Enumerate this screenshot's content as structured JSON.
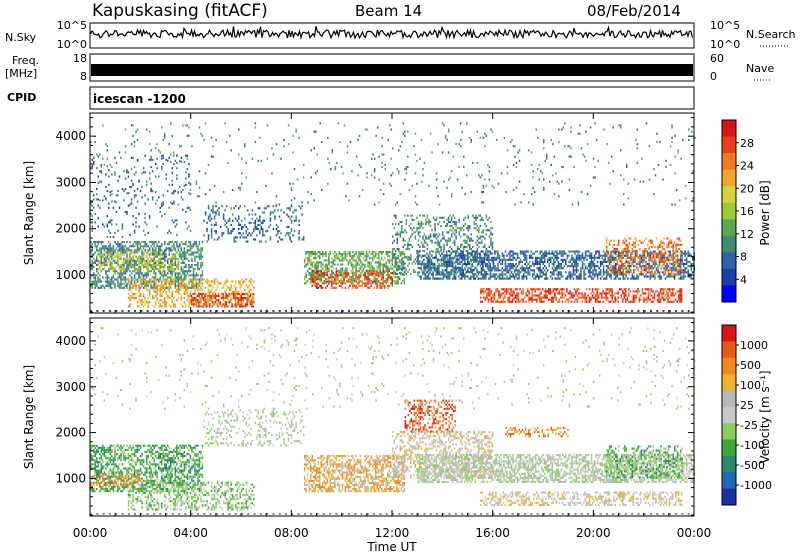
{
  "header": {
    "station": "Kapuskasing (fitACF)",
    "beam": "Beam 14",
    "date": "08/Feb/2014"
  },
  "side_labels": {
    "nsky": "N.Sky",
    "freq": "Freq.",
    "freq_unit": "[MHz]",
    "cpid": "CPID",
    "nsearch": "N.Search",
    "nave": "Nave",
    "cpid_value": "icescan -1200"
  },
  "strips": {
    "noise": {
      "left_ticks": [
        "10^5",
        "10^0"
      ],
      "right_ticks": [
        "10^5",
        "10^0"
      ]
    },
    "freq": {
      "left_ticks": [
        "18",
        "8"
      ],
      "right_ticks": [
        "60",
        "0"
      ]
    }
  },
  "chart_data": [
    {
      "type": "heatmap",
      "title": "",
      "xlabel": "Time UT",
      "ylabel": "Slant Range [km]",
      "x_ticks": [
        "00:00",
        "04:00",
        "08:00",
        "12:00",
        "16:00",
        "20:00",
        "00:00"
      ],
      "xlim_hours": [
        0,
        24
      ],
      "ylim": [
        180,
        4500
      ],
      "y_ticks": [
        1000,
        2000,
        3000,
        4000
      ],
      "colorbar": {
        "label": "Power [dB]",
        "ticks": [
          "4",
          "8",
          "12",
          "16",
          "20",
          "24",
          "28"
        ],
        "colors": [
          "#0000ff",
          "#1b3fa8",
          "#2f62a6",
          "#3d8c6e",
          "#5aa84a",
          "#9acb35",
          "#d6d23a",
          "#f2a72a",
          "#f07a1e",
          "#e8401a",
          "#d81414"
        ]
      },
      "scatter_regions": [
        {
          "t0": 0.0,
          "t1": 4.5,
          "r0": 700,
          "r1": 1700,
          "c": 3,
          "d": 0.55
        },
        {
          "t0": 0.3,
          "t1": 3.5,
          "r0": 1100,
          "r1": 1500,
          "c": 6,
          "d": 0.35
        },
        {
          "t0": 1.5,
          "t1": 6.5,
          "r0": 300,
          "r1": 900,
          "c": 7,
          "d": 0.4
        },
        {
          "t0": 4.0,
          "t1": 6.5,
          "r0": 300,
          "r1": 600,
          "c": 9,
          "d": 0.5
        },
        {
          "t0": 0.0,
          "t1": 4.0,
          "r0": 1800,
          "r1": 3600,
          "c": 2,
          "d": 0.08
        },
        {
          "t0": 4.5,
          "t1": 8.5,
          "r0": 1700,
          "r1": 2500,
          "c": 2,
          "d": 0.2
        },
        {
          "t0": 8.5,
          "t1": 12.5,
          "r0": 800,
          "r1": 1500,
          "c": 4,
          "d": 0.55
        },
        {
          "t0": 8.8,
          "t1": 12.0,
          "r0": 700,
          "r1": 1100,
          "c": 9,
          "d": 0.45
        },
        {
          "t0": 12.0,
          "t1": 16.0,
          "r0": 1000,
          "r1": 2300,
          "c": 3,
          "d": 0.3
        },
        {
          "t0": 13.0,
          "t1": 24.0,
          "r0": 900,
          "r1": 1500,
          "c": 2,
          "d": 0.55
        },
        {
          "t0": 15.5,
          "t1": 23.5,
          "r0": 400,
          "r1": 700,
          "c": 9,
          "d": 0.55
        },
        {
          "t0": 20.5,
          "t1": 23.5,
          "r0": 1000,
          "r1": 1800,
          "c": 8,
          "d": 0.35
        },
        {
          "t0": 0.0,
          "t1": 24.0,
          "r0": 2500,
          "r1": 4300,
          "c": 3,
          "d": 0.03
        }
      ]
    },
    {
      "type": "heatmap",
      "title": "",
      "xlabel": "Time UT",
      "ylabel": "Slant Range [km]",
      "x_ticks": [
        "00:00",
        "04:00",
        "08:00",
        "12:00",
        "16:00",
        "20:00",
        "00:00"
      ],
      "xlim_hours": [
        0,
        24
      ],
      "ylim": [
        180,
        4500
      ],
      "y_ticks": [
        1000,
        2000,
        3000,
        4000
      ],
      "colorbar": {
        "label": "Velocity [m s⁻¹]",
        "ticks": [
          "1000",
          "500",
          "100",
          "25",
          "-25",
          "-100",
          "-500",
          "-1000"
        ],
        "colors": [
          "#1a2fa0",
          "#2266b8",
          "#2f8a6a",
          "#3da63a",
          "#8bcf5a",
          "#c8c8c8",
          "#b8b8b8",
          "#f0b030",
          "#f08a20",
          "#e85a18",
          "#d81414"
        ]
      },
      "scatter_regions": [
        {
          "t0": 0.0,
          "t1": 4.5,
          "r0": 700,
          "r1": 1700,
          "c": 3,
          "d": 0.55
        },
        {
          "t0": 1.5,
          "t1": 6.5,
          "r0": 300,
          "r1": 900,
          "c": 4,
          "d": 0.4
        },
        {
          "t0": 0.0,
          "t1": 2.0,
          "r0": 800,
          "r1": 1100,
          "c": 8,
          "d": 0.3
        },
        {
          "t0": 4.5,
          "t1": 8.5,
          "r0": 1700,
          "r1": 2500,
          "c": 5,
          "d": 0.22
        },
        {
          "t0": 8.5,
          "t1": 12.5,
          "r0": 700,
          "r1": 1500,
          "c": 7,
          "d": 0.55
        },
        {
          "t0": 12.0,
          "t1": 16.0,
          "r0": 1000,
          "r1": 2000,
          "c": 6,
          "d": 0.4
        },
        {
          "t0": 12.5,
          "t1": 14.5,
          "r0": 2000,
          "r1": 2700,
          "c": 9,
          "d": 0.35
        },
        {
          "t0": 13.0,
          "t1": 24.0,
          "r0": 900,
          "r1": 1500,
          "c": 5,
          "d": 0.6
        },
        {
          "t0": 15.5,
          "t1": 23.5,
          "r0": 400,
          "r1": 700,
          "c": 6,
          "d": 0.45
        },
        {
          "t0": 16.5,
          "t1": 19.0,
          "r0": 1900,
          "r1": 2100,
          "c": 8,
          "d": 0.4
        },
        {
          "t0": 20.5,
          "t1": 23.5,
          "r0": 1000,
          "r1": 1700,
          "c": 3,
          "d": 0.35
        },
        {
          "t0": 0.0,
          "t1": 24.0,
          "r0": 2500,
          "r1": 4300,
          "c": 5,
          "d": 0.03
        }
      ]
    }
  ]
}
